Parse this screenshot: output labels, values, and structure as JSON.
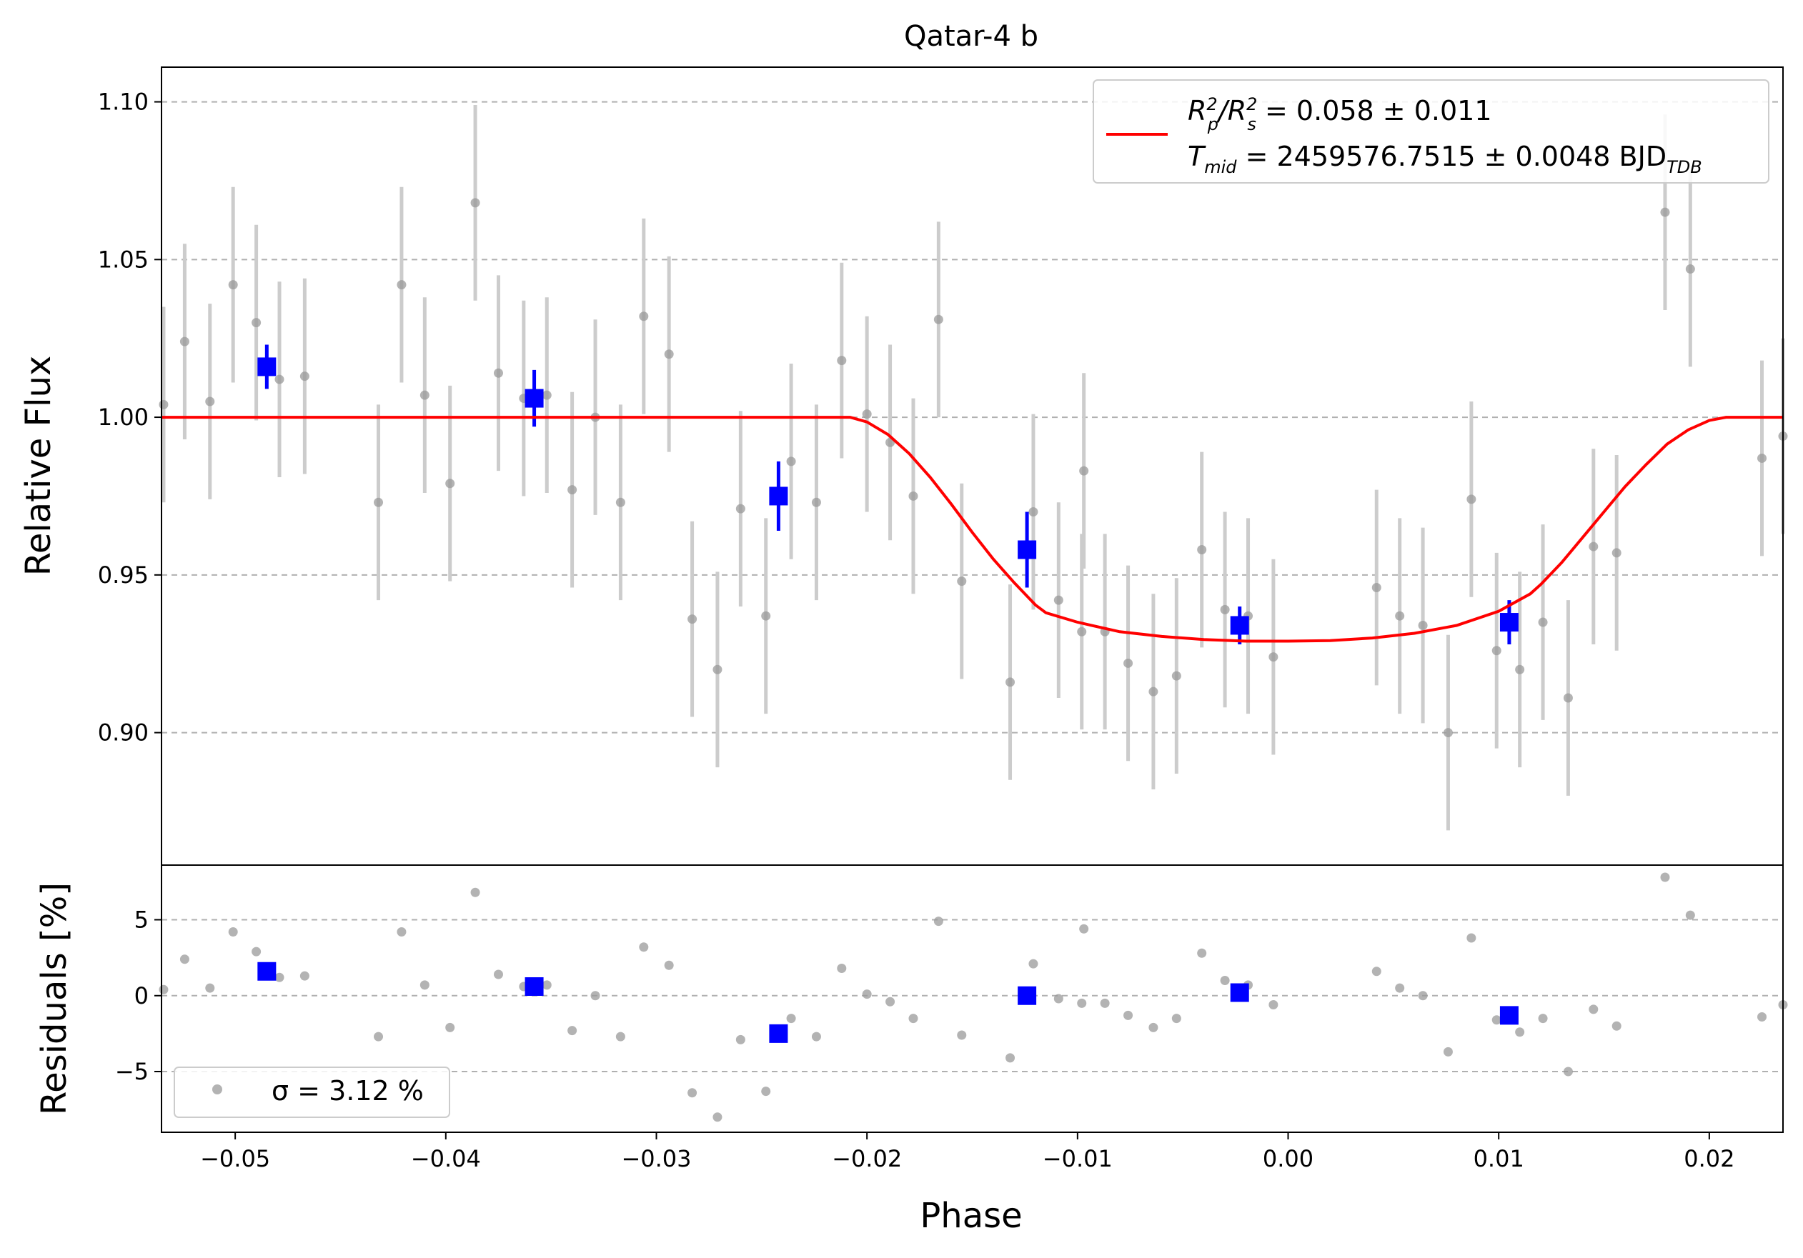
{
  "chart_data": {
    "type": "scatter",
    "title": "Qatar-4 b",
    "xlabel": "Phase",
    "xlim": [
      -0.0535,
      0.0235
    ],
    "xticks": [
      -0.05,
      -0.04,
      -0.03,
      -0.02,
      -0.01,
      0.0,
      0.01,
      0.02
    ],
    "xtick_labels": [
      "−0.05",
      "−0.04",
      "−0.03",
      "−0.02",
      "−0.01",
      "0.00",
      "0.01",
      "0.02"
    ],
    "grid": true,
    "panels": {
      "flux": {
        "ylabel": "Relative Flux",
        "ylim": [
          0.858,
          1.111
        ],
        "yticks": [
          0.9,
          0.95,
          1.0,
          1.05,
          1.1
        ],
        "ytick_labels": [
          "0.90",
          "0.95",
          "1.00",
          "1.05",
          "1.10"
        ],
        "legend_position": "top-right",
        "legend": {
          "model_line1": "R",
          "model_line1_rest": " = 0.058 ± 0.011",
          "model_line2": "T",
          "model_line2_sub": "mid",
          "model_line2_rest": " = 2459576.7515 ± 0.0048 BJD",
          "model_line2_suffix_sub": "TDB"
        }
      },
      "residuals": {
        "ylabel": "Residuals [%]",
        "ylim": [
          -9.0,
          8.6
        ],
        "yticks": [
          -5,
          0,
          5
        ],
        "ytick_labels": [
          "−5",
          "0",
          "5"
        ],
        "legend_position": "bottom-left",
        "legend": {
          "sigma_text": "σ = 3.12 %"
        }
      }
    },
    "series": [
      {
        "name": "data",
        "points": [
          [
            -0.0534,
            1.004,
            0.4
          ],
          [
            -0.0524,
            1.024,
            2.4
          ],
          [
            -0.0512,
            1.005,
            0.5
          ],
          [
            -0.0501,
            1.042,
            4.2
          ],
          [
            -0.049,
            1.03,
            2.9
          ],
          [
            -0.0479,
            1.012,
            1.2
          ],
          [
            -0.0467,
            1.013,
            1.3
          ],
          [
            -0.0432,
            0.973,
            -2.7
          ],
          [
            -0.0421,
            1.042,
            4.2
          ],
          [
            -0.041,
            1.007,
            0.7
          ],
          [
            -0.0398,
            0.979,
            -2.1
          ],
          [
            -0.0386,
            1.068,
            6.8
          ],
          [
            -0.0375,
            1.014,
            1.4
          ],
          [
            -0.0363,
            1.006,
            0.6
          ],
          [
            -0.0352,
            1.007,
            0.7
          ],
          [
            -0.034,
            0.977,
            -2.3
          ],
          [
            -0.0329,
            1.0,
            0.0
          ],
          [
            -0.0317,
            0.973,
            -2.7
          ],
          [
            -0.0306,
            1.032,
            3.2
          ],
          [
            -0.0294,
            1.02,
            2.0
          ],
          [
            -0.0283,
            0.936,
            -6.4
          ],
          [
            -0.0271,
            0.92,
            -8.0
          ],
          [
            -0.026,
            0.971,
            -2.9
          ],
          [
            -0.0248,
            0.937,
            -6.3
          ],
          [
            -0.0236,
            0.986,
            -1.5
          ],
          [
            -0.0224,
            0.973,
            -2.7
          ],
          [
            -0.0212,
            1.018,
            1.8
          ],
          [
            -0.02,
            1.001,
            0.1
          ],
          [
            -0.0189,
            0.992,
            -0.4
          ],
          [
            -0.0178,
            0.975,
            -1.5
          ],
          [
            -0.0166,
            1.031,
            4.9
          ],
          [
            -0.0155,
            0.948,
            -2.6
          ],
          [
            -0.0132,
            0.916,
            -4.1
          ],
          [
            -0.0121,
            0.97,
            2.1
          ],
          [
            -0.0109,
            0.942,
            -0.2
          ],
          [
            -0.0098,
            0.932,
            -0.5
          ],
          [
            -0.0097,
            0.983,
            4.4
          ],
          [
            -0.0087,
            0.932,
            -0.5
          ],
          [
            -0.0076,
            0.922,
            -1.3
          ],
          [
            -0.0064,
            0.913,
            -2.1
          ],
          [
            -0.0053,
            0.918,
            -1.5
          ],
          [
            -0.0041,
            0.958,
            2.8
          ],
          [
            -0.003,
            0.939,
            1.0
          ],
          [
            -0.0019,
            0.937,
            0.7
          ],
          [
            -0.0007,
            0.924,
            -0.6
          ],
          [
            0.0042,
            0.946,
            1.6
          ],
          [
            0.0053,
            0.937,
            0.5
          ],
          [
            0.0064,
            0.934,
            0.0
          ],
          [
            0.0076,
            0.9,
            -3.7
          ],
          [
            0.0087,
            0.974,
            3.8
          ],
          [
            0.0099,
            0.926,
            -1.6
          ],
          [
            0.011,
            0.92,
            -2.4
          ],
          [
            0.0121,
            0.935,
            -1.5
          ],
          [
            0.0133,
            0.911,
            -5.0
          ],
          [
            0.0145,
            0.959,
            -0.9
          ],
          [
            0.0156,
            0.957,
            -2.0
          ],
          [
            0.0179,
            1.065,
            7.8
          ],
          [
            0.0191,
            1.047,
            5.3
          ],
          [
            0.0225,
            0.987,
            -1.4
          ],
          [
            0.0235,
            0.994,
            -0.6
          ]
        ],
        "error": 0.031
      },
      {
        "name": "binned",
        "points": [
          [
            -0.0485,
            1.016,
            1.6,
            0.007
          ],
          [
            -0.0358,
            1.006,
            0.6,
            0.009
          ],
          [
            -0.0242,
            0.975,
            -2.5,
            0.011
          ],
          [
            -0.0124,
            0.958,
            0.0,
            0.012
          ],
          [
            -0.0023,
            0.934,
            0.2,
            0.006
          ],
          [
            0.0105,
            0.935,
            -1.3,
            0.007
          ]
        ]
      },
      {
        "name": "model",
        "x": [
          -0.0535,
          -0.0208,
          -0.02,
          -0.019,
          -0.018,
          -0.017,
          -0.016,
          -0.015,
          -0.014,
          -0.013,
          -0.012,
          -0.0115,
          -0.01,
          -0.008,
          -0.006,
          -0.004,
          -0.002,
          0.0,
          0.002,
          0.004,
          0.006,
          0.008,
          0.01,
          0.0115,
          0.012,
          0.013,
          0.014,
          0.015,
          0.016,
          0.017,
          0.018,
          0.019,
          0.02,
          0.0208,
          0.0235
        ],
        "values": [
          1.0,
          1.0,
          0.9985,
          0.9945,
          0.9885,
          0.981,
          0.9725,
          0.9635,
          0.955,
          0.9475,
          0.9405,
          0.938,
          0.935,
          0.932,
          0.9305,
          0.9295,
          0.929,
          0.929,
          0.9292,
          0.93,
          0.9315,
          0.934,
          0.9385,
          0.944,
          0.947,
          0.954,
          0.962,
          0.97,
          0.978,
          0.985,
          0.9915,
          0.996,
          0.999,
          1.0,
          1.0
        ]
      }
    ],
    "colors": {
      "data": "#9a9a9a",
      "errorbar": "#cccccc",
      "binned": "#0000ff",
      "model": "#ff0000",
      "grid": "#b0b0b0"
    }
  }
}
